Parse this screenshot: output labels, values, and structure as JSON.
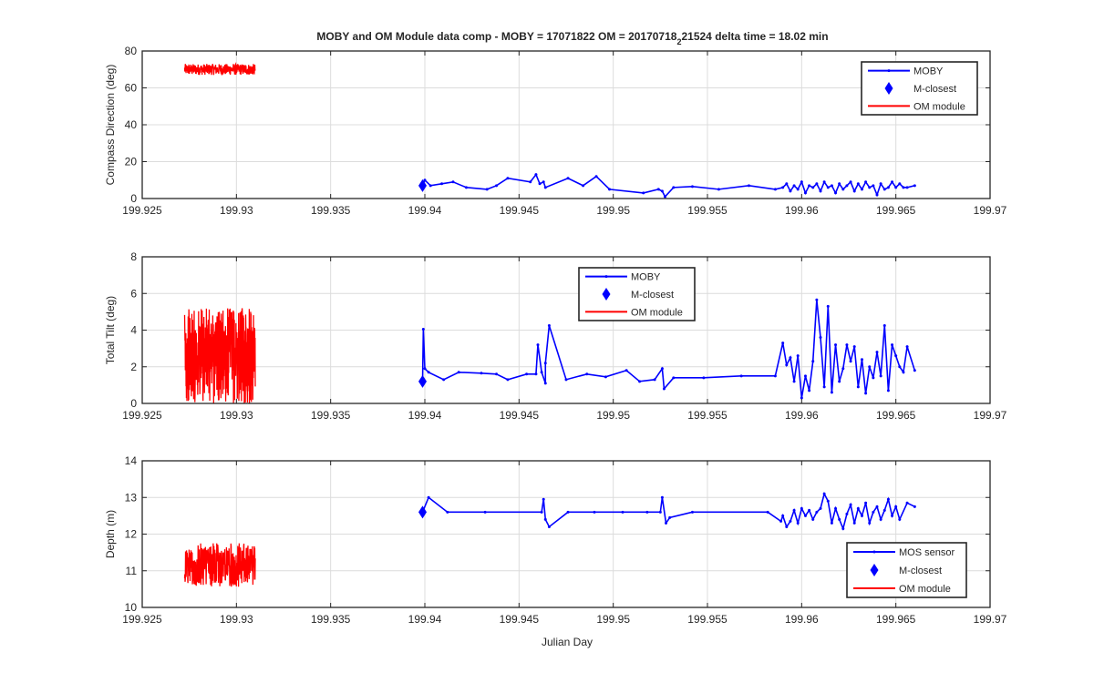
{
  "figure": {
    "title_main": "MOBY and OM Module data comp - MOBY = 17071822 OM = 20170718",
    "title_sub": "2",
    "title_tail": "21524 delta time = 18.02 min",
    "xlabel": "Julian Day"
  },
  "colors": {
    "moby": "#0000ff",
    "om": "#ff0000",
    "grid": "#dcdcdc",
    "axis": "#262626"
  },
  "chart_data": [
    {
      "type": "line",
      "ylabel": "Compass Direction (deg)",
      "xlim": [
        199.925,
        199.97
      ],
      "ylim": [
        0,
        80
      ],
      "xticks": [
        199.925,
        199.93,
        199.935,
        199.94,
        199.945,
        199.95,
        199.955,
        199.96,
        199.965,
        199.97
      ],
      "xtick_labels": [
        "199.925",
        "199.93",
        "199.935",
        "199.94",
        "199.945",
        "199.95",
        "199.955",
        "199.96",
        "199.965",
        "199.97"
      ],
      "yticks": [
        0,
        20,
        40,
        60,
        80
      ],
      "ytick_labels": [
        "0",
        "20",
        "40",
        "60",
        "80"
      ],
      "grid": true,
      "legend_position": "top-right",
      "legend": [
        "MOBY",
        "M-closest",
        "OM module"
      ],
      "series": [
        {
          "name": "MOBY",
          "kind": "moby",
          "x": [
            199.93988,
            199.94,
            199.9403,
            199.9409,
            199.9415,
            199.9422,
            199.9433,
            199.9438,
            199.9444,
            199.9456,
            199.9459,
            199.9461,
            199.9463,
            199.9464,
            199.9476,
            199.9484,
            199.9491,
            199.9498,
            199.9516,
            199.9524,
            199.9526,
            199.95275,
            199.9532,
            199.9542,
            199.9556,
            199.9572,
            199.9586,
            199.959,
            199.9592,
            199.9594,
            199.9596,
            199.9598,
            199.96,
            199.9602,
            199.9604,
            199.9606,
            199.9608,
            199.961,
            199.9612,
            199.9614,
            199.9616,
            199.9618,
            199.962,
            199.9622,
            199.9624,
            199.9626,
            199.9628,
            199.963,
            199.9632,
            199.9634,
            199.9636,
            199.9638,
            199.964,
            199.9642,
            199.9644,
            199.9646,
            199.9648,
            199.965,
            199.9652,
            199.9654,
            199.9656,
            199.966
          ],
          "y": [
            7,
            10,
            7,
            8,
            9,
            6,
            5,
            7,
            11,
            9,
            13,
            8,
            9,
            6,
            11,
            7,
            12,
            5,
            3,
            5,
            4,
            1,
            6,
            6.5,
            5,
            7,
            5,
            6,
            8,
            4,
            7,
            5,
            9,
            3,
            7,
            6,
            8,
            4,
            9,
            6,
            7,
            3,
            8,
            5,
            7,
            9,
            4,
            8,
            5,
            9,
            6,
            7,
            2,
            8,
            5,
            6,
            9,
            6,
            8,
            6,
            6,
            7
          ]
        },
        {
          "name": "M-closest",
          "kind": "closest",
          "x": [
            199.93988
          ],
          "y": [
            7
          ]
        },
        {
          "name": "OM module",
          "kind": "om",
          "noise": "dense",
          "x_range": [
            199.92725,
            199.931
          ],
          "center": 70,
          "amplitude": 3,
          "points": 300
        }
      ]
    },
    {
      "type": "line",
      "ylabel": "Total Tilt (deg)",
      "xlim": [
        199.925,
        199.97
      ],
      "ylim": [
        0,
        8
      ],
      "xticks": [
        199.925,
        199.93,
        199.935,
        199.94,
        199.945,
        199.95,
        199.955,
        199.96,
        199.965,
        199.97
      ],
      "xtick_labels": [
        "199.925",
        "199.93",
        "199.935",
        "199.94",
        "199.945",
        "199.95",
        "199.955",
        "199.96",
        "199.965",
        "199.97"
      ],
      "yticks": [
        0,
        2,
        4,
        6,
        8
      ],
      "ytick_labels": [
        "0",
        "2",
        "4",
        "6",
        "8"
      ],
      "grid": true,
      "legend_position": "top-center",
      "legend": [
        "MOBY",
        "M-closest",
        "OM module"
      ],
      "series": [
        {
          "name": "MOBY",
          "kind": "moby",
          "x": [
            199.93988,
            199.93992,
            199.94,
            199.9402,
            199.941,
            199.9418,
            199.943,
            199.9438,
            199.9444,
            199.9454,
            199.9459,
            199.946,
            199.9462,
            199.9464,
            199.9464,
            199.9466,
            199.9475,
            199.9486,
            199.9496,
            199.9507,
            199.9514,
            199.9522,
            199.9526,
            199.9527,
            199.9532,
            199.9548,
            199.9568,
            199.9586,
            199.959,
            199.9592,
            199.9594,
            199.9596,
            199.9598,
            199.96,
            199.9602,
            199.9604,
            199.9606,
            199.9608,
            199.961,
            199.9612,
            199.9614,
            199.9616,
            199.9618,
            199.962,
            199.9622,
            199.9624,
            199.9626,
            199.9628,
            199.963,
            199.9632,
            199.9634,
            199.9636,
            199.9638,
            199.964,
            199.9642,
            199.9644,
            199.9646,
            199.9648,
            199.965,
            199.9652,
            199.9654,
            199.9656,
            199.966
          ],
          "y": [
            1.2,
            4.05,
            1.9,
            1.7,
            1.3,
            1.7,
            1.65,
            1.6,
            1.3,
            1.6,
            1.6,
            3.2,
            1.7,
            1.1,
            2.2,
            4.25,
            1.3,
            1.6,
            1.45,
            1.8,
            1.2,
            1.3,
            1.9,
            0.8,
            1.4,
            1.4,
            1.5,
            1.5,
            3.3,
            2.1,
            2.5,
            1.2,
            2.6,
            0.3,
            1.5,
            0.7,
            2.3,
            5.65,
            3.6,
            0.9,
            5.3,
            0.6,
            3.2,
            1.2,
            1.9,
            3.2,
            2.3,
            3.1,
            0.9,
            2.4,
            0.55,
            2.0,
            1.4,
            2.8,
            1.5,
            4.25,
            0.7,
            3.2,
            2.6,
            2.0,
            1.7,
            3.1,
            1.8
          ]
        },
        {
          "name": "M-closest",
          "kind": "closest",
          "x": [
            199.93988
          ],
          "y": [
            1.2
          ]
        },
        {
          "name": "OM module",
          "kind": "om",
          "noise": "dense",
          "x_range": [
            199.92725,
            199.931
          ],
          "center": 2.6,
          "amplitude": 2.6,
          "points": 400,
          "clip": [
            0,
            8
          ]
        }
      ]
    },
    {
      "type": "line",
      "ylabel": "Depth (m)",
      "xlim": [
        199.925,
        199.97
      ],
      "ylim": [
        10,
        14
      ],
      "xticks": [
        199.925,
        199.93,
        199.935,
        199.94,
        199.945,
        199.95,
        199.955,
        199.96,
        199.965,
        199.97
      ],
      "xtick_labels": [
        "199.925",
        "199.93",
        "199.935",
        "199.94",
        "199.945",
        "199.95",
        "199.955",
        "199.96",
        "199.965",
        "199.97"
      ],
      "yticks": [
        10,
        11,
        12,
        13,
        14
      ],
      "ytick_labels": [
        "10",
        "11",
        "12",
        "13",
        "14"
      ],
      "grid": true,
      "legend_position": "bottom-right",
      "legend": [
        "MOS sensor",
        "M-closest",
        "OM module"
      ],
      "series": [
        {
          "name": "MOS sensor",
          "kind": "moby",
          "x": [
            199.93988,
            199.9402,
            199.9412,
            199.9432,
            199.9462,
            199.9463,
            199.9464,
            199.9466,
            199.9476,
            199.949,
            199.9505,
            199.9518,
            199.9525,
            199.9526,
            199.9528,
            199.953,
            199.9542,
            199.9582,
            199.9589,
            199.959,
            199.9592,
            199.9594,
            199.9596,
            199.9598,
            199.96,
            199.9602,
            199.9604,
            199.9606,
            199.9608,
            199.961,
            199.9612,
            199.9614,
            199.9616,
            199.9618,
            199.962,
            199.9622,
            199.9624,
            199.9626,
            199.9628,
            199.963,
            199.9632,
            199.9634,
            199.9636,
            199.9638,
            199.964,
            199.9642,
            199.9644,
            199.9646,
            199.9648,
            199.965,
            199.9652,
            199.9656,
            199.966
          ],
          "y": [
            12.6,
            13.0,
            12.6,
            12.6,
            12.6,
            12.95,
            12.4,
            12.2,
            12.6,
            12.6,
            12.6,
            12.6,
            12.6,
            13.0,
            12.3,
            12.45,
            12.6,
            12.6,
            12.35,
            12.5,
            12.2,
            12.35,
            12.65,
            12.3,
            12.7,
            12.5,
            12.65,
            12.4,
            12.6,
            12.7,
            13.1,
            12.9,
            12.3,
            12.7,
            12.4,
            12.15,
            12.55,
            12.8,
            12.3,
            12.7,
            12.5,
            12.85,
            12.3,
            12.6,
            12.75,
            12.4,
            12.65,
            12.95,
            12.5,
            12.75,
            12.4,
            12.85,
            12.75
          ]
        },
        {
          "name": "M-closest",
          "kind": "closest",
          "x": [
            199.93988
          ],
          "y": [
            12.6
          ]
        },
        {
          "name": "OM module",
          "kind": "om",
          "noise": "dense",
          "x_range": [
            199.92725,
            199.931
          ],
          "center": 11.15,
          "amplitude": 0.6,
          "points": 300
        }
      ]
    }
  ]
}
